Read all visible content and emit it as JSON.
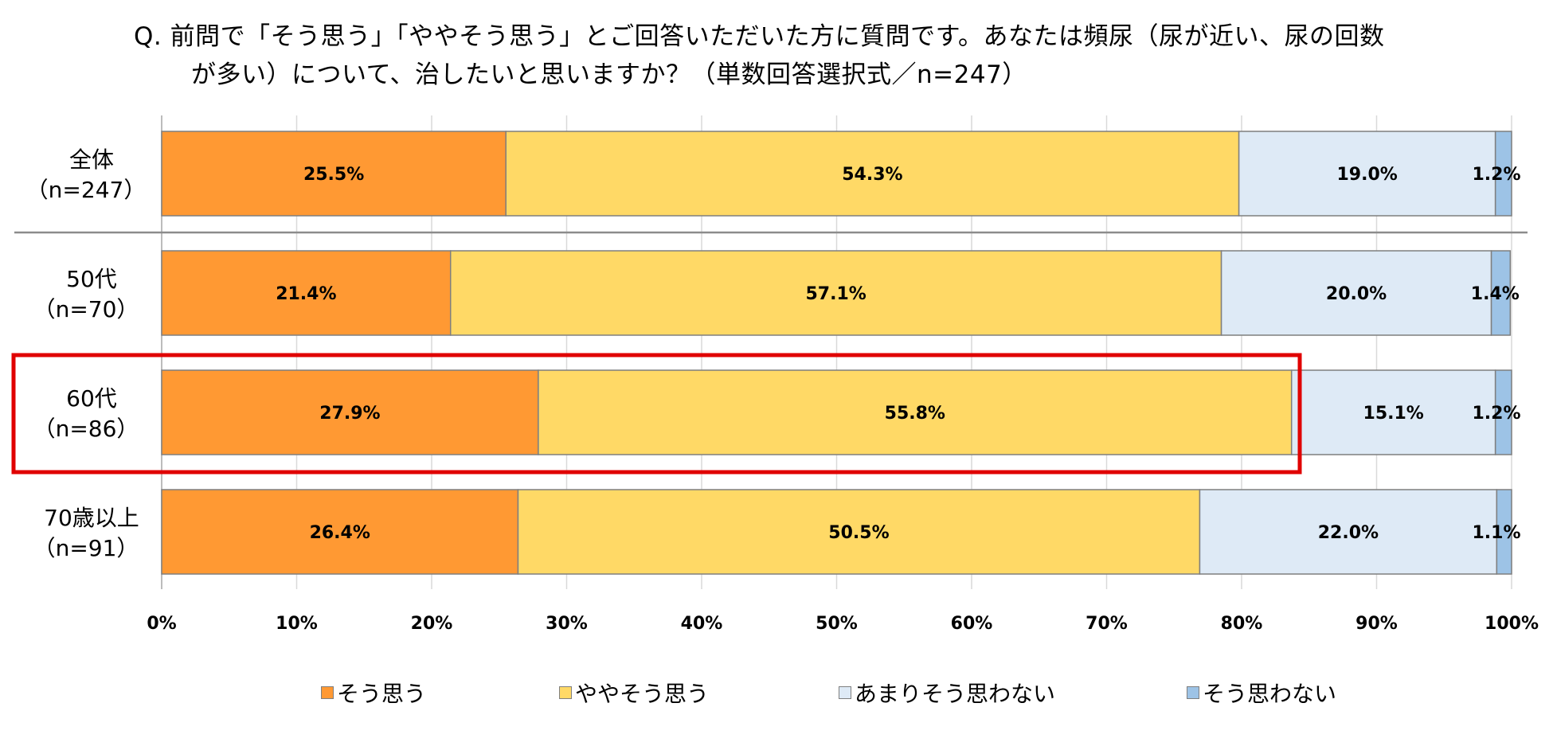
{
  "title": {
    "line1": "Q. 前問で「そう思う」「ややそう思う」とご回答いただいた方に質問です。あなたは頻尿（尿が近い、尿の回数",
    "line2": "が多い）について、治したいと思いますか？（単数回答選択式／n=247）"
  },
  "chart_data": {
    "type": "bar",
    "orientation": "horizontal",
    "stacked": true,
    "categories": [
      [
        "全体",
        "（n=247）"
      ],
      [
        "50代",
        "（n=70）"
      ],
      [
        "60代",
        "（n=86）"
      ],
      [
        "70歳以上",
        "（n=91）"
      ]
    ],
    "series": [
      {
        "name": "そう思う",
        "color": "#FF9933",
        "values": [
          25.5,
          21.4,
          27.9,
          26.4
        ],
        "labels": [
          "25.5%",
          "21.4%",
          "27.9%",
          "26.4%"
        ]
      },
      {
        "name": "ややそう思う",
        "color": "#FFD966",
        "values": [
          54.3,
          57.1,
          55.8,
          50.5
        ],
        "labels": [
          "54.3%",
          "57.1%",
          "55.8%",
          "50.5%"
        ]
      },
      {
        "name": "あまりそう思わない",
        "color": "#DEEAF6",
        "values": [
          19.0,
          20.0,
          15.1,
          22.0
        ],
        "labels": [
          "19.0%",
          "20.0%",
          "15.1%",
          "22.0%"
        ]
      },
      {
        "name": "そう思わない",
        "color": "#9DC3E6",
        "values": [
          1.2,
          1.4,
          1.2,
          1.1
        ],
        "labels": [
          "1.2%",
          "1.4%",
          "1.2%",
          "1.1%"
        ]
      }
    ],
    "xlim": [
      0,
      100
    ],
    "xticks": [
      "0%",
      "10%",
      "20%",
      "30%",
      "40%",
      "50%",
      "60%",
      "70%",
      "80%",
      "90%",
      "100%"
    ],
    "grid": true,
    "legend_position": "bottom",
    "highlight": {
      "category_index": 2,
      "color": "#E00000"
    }
  }
}
